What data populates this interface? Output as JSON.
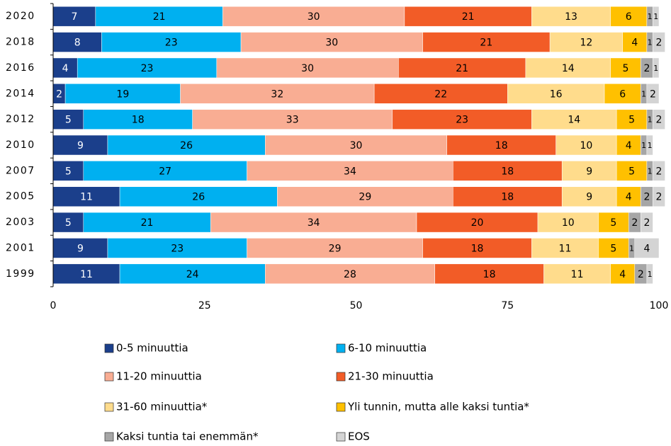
{
  "chart_data": {
    "type": "stacked-barh",
    "categories": [
      "2020",
      "2018",
      "2016",
      "2014",
      "2012",
      "2010",
      "2007",
      "2005",
      "2003",
      "2001",
      "1999"
    ],
    "series": [
      {
        "name": "0-5 minuuttia",
        "color": "#1b3f8b",
        "values": [
          7,
          8,
          4,
          2,
          5,
          9,
          5,
          11,
          5,
          9,
          11
        ]
      },
      {
        "name": "6-10 minuuttia",
        "color": "#00b0f0",
        "values": [
          21,
          23,
          23,
          19,
          18,
          26,
          27,
          26,
          21,
          23,
          24
        ]
      },
      {
        "name": "11-20 minuuttia",
        "color": "#f9ad93",
        "values": [
          30,
          30,
          30,
          32,
          33,
          30,
          34,
          29,
          34,
          29,
          28
        ]
      },
      {
        "name": "21-30 minuuttia",
        "color": "#f25c27",
        "values": [
          21,
          21,
          21,
          22,
          23,
          18,
          18,
          18,
          20,
          18,
          18
        ]
      },
      {
        "name": "31-60 minuuttia*",
        "color": "#ffdc8c",
        "values": [
          13,
          12,
          14,
          16,
          14,
          10,
          9,
          9,
          10,
          11,
          11
        ]
      },
      {
        "name": "Yli tunnin, mutta alle kaksi tuntia*",
        "color": "#ffc000",
        "values": [
          6,
          4,
          5,
          6,
          5,
          4,
          5,
          4,
          5,
          5,
          4
        ]
      },
      {
        "name": "Kaksi tuntia tai enemmän*",
        "color": "#a6a6a6",
        "values": [
          1,
          1,
          2,
          1,
          1,
          1,
          1,
          2,
          2,
          1,
          2
        ]
      },
      {
        "name": "EOS",
        "color": "#d4d4d4",
        "values": [
          1,
          2,
          1,
          2,
          2,
          1,
          2,
          2,
          2,
          4,
          1
        ]
      }
    ],
    "xlim": [
      0,
      100
    ],
    "xticks": [
      0,
      25,
      50,
      75,
      100
    ]
  }
}
